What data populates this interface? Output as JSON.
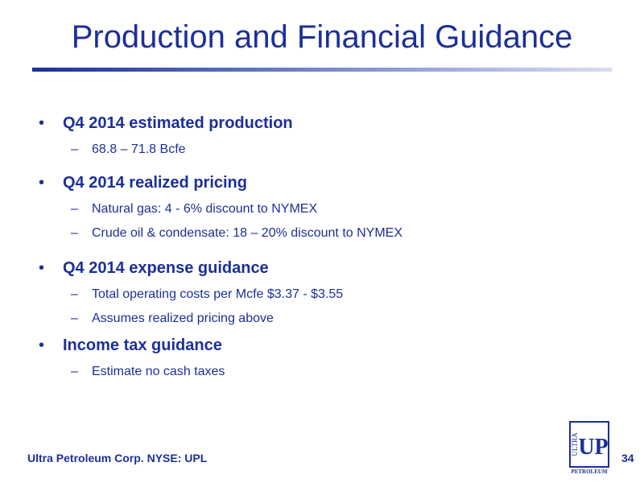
{
  "title": "Production and Financial Guidance",
  "bullets": [
    {
      "text": "Q4 2014 estimated production",
      "subs": [
        "68.8 – 71.8 Bcfe"
      ]
    },
    {
      "text": "Q4 2014 realized pricing",
      "subs": [
        "Natural gas: 4 - 6% discount to NYMEX",
        "Crude oil & condensate: 18 – 20% discount to NYMEX"
      ]
    },
    {
      "text": "Q4 2014 expense guidance",
      "subs": [
        "Total operating costs per Mcfe $3.37 - $3.55",
        "Assumes realized pricing above"
      ]
    },
    {
      "text": "Income tax guidance",
      "subs": [
        "Estimate no cash taxes"
      ]
    }
  ],
  "footer": "Ultra Petroleum Corp. NYSE: UPL",
  "page_number": "34",
  "logo": {
    "top_text": "ULTRA",
    "main_text": "UP",
    "bottom_text": "PETROLEUM"
  },
  "colors": {
    "brand_blue": "#1c2f99"
  }
}
